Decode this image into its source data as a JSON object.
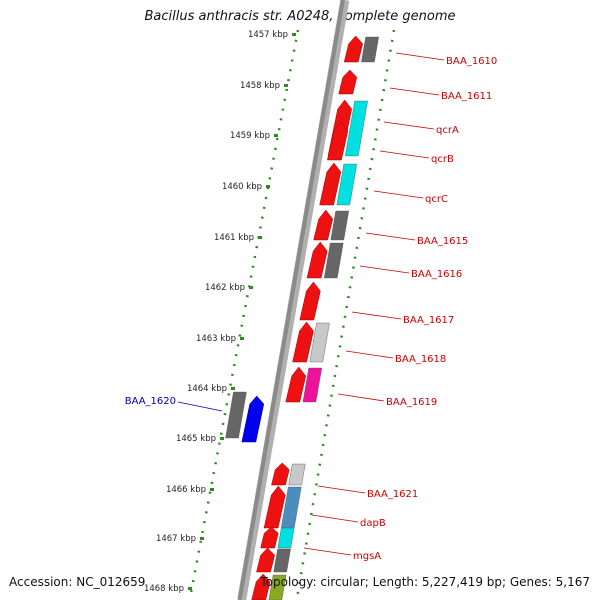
{
  "title": "Bacillus anthracis str. A0248, complete genome",
  "accession": "Accession: NC_012659",
  "topology": "Topology: circular; Length: 5,227,419 bp; Genes: 5,167",
  "ticks": [
    "1457 kbp",
    "1458 kbp",
    "1459 kbp",
    "1460 kbp",
    "1461 kbp",
    "1462 kbp",
    "1463 kbp",
    "1464 kbp",
    "1465 kbp",
    "1466 kbp",
    "1467 kbp",
    "1468 kbp"
  ],
  "gene_labels": [
    {
      "text": "BAA_1610",
      "strand": "plus"
    },
    {
      "text": "BAA_1611",
      "strand": "plus"
    },
    {
      "text": "qcrA",
      "strand": "plus"
    },
    {
      "text": "qcrB",
      "strand": "plus"
    },
    {
      "text": "qcrC",
      "strand": "plus"
    },
    {
      "text": "BAA_1615",
      "strand": "plus"
    },
    {
      "text": "BAA_1616",
      "strand": "plus"
    },
    {
      "text": "BAA_1617",
      "strand": "plus"
    },
    {
      "text": "BAA_1618",
      "strand": "plus"
    },
    {
      "text": "BAA_1619",
      "strand": "plus"
    },
    {
      "text": "BAA_1620",
      "strand": "minus"
    },
    {
      "text": "BAA_1621",
      "strand": "plus"
    },
    {
      "text": "dapB",
      "strand": "plus"
    },
    {
      "text": "mgsA",
      "strand": "plus"
    }
  ],
  "colors": {
    "backbone": "#8a8a8a",
    "tick_dots": "#2e8b20",
    "forward_arrow": "#ee1111",
    "reverse_arrow": "#0000ee",
    "forward_label": "#cc0000",
    "reverse_label": "#0000aa",
    "cog_cyan": "#00e0e0",
    "cog_dark": "#666666",
    "cog_light": "#c8c8c8",
    "cog_magenta": "#ee1199",
    "cog_steel": "#4a8ec0",
    "cog_olive": "#88aa22"
  }
}
